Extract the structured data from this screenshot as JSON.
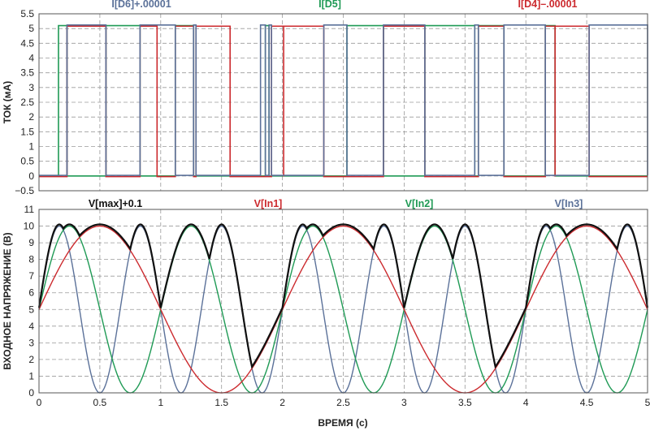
{
  "chart_data": [
    {
      "type": "line",
      "ylabel": "ТОК (мА)",
      "ylim": [
        -0.5,
        5.5
      ],
      "xlim": [
        0,
        5
      ],
      "y_ticks": [
        "5.5",
        "5",
        "4.5",
        "4",
        "3.5",
        "3",
        "2.5",
        "2",
        "1.5",
        "1",
        "0.5",
        "0",
        "−0.5"
      ],
      "grid": true,
      "legend_placement": "top",
      "series": [
        {
          "name": "I[D6]+.00001",
          "color": "#5b7199",
          "high_intervals": [
            [
              0.23,
              0.55
            ],
            [
              0.83,
              1.12
            ],
            [
              1.27,
              1.29
            ],
            [
              1.82,
              1.86
            ],
            [
              1.89,
              1.91
            ],
            [
              2.34,
              2.53
            ],
            [
              2.83,
              3.17
            ],
            [
              3.58,
              3.61
            ],
            [
              3.82,
              4.16
            ],
            [
              4.52,
              5.0
            ]
          ]
        },
        {
          "name": "I[D5]",
          "color": "#1f9a55",
          "high_intervals": [
            [
              0.16,
              0.23
            ],
            [
              0.55,
              0.83
            ],
            [
              1.12,
              1.27
            ],
            [
              1.86,
              1.89
            ],
            [
              2.53,
              2.83
            ],
            [
              3.17,
              3.58
            ],
            [
              3.61,
              3.82
            ],
            [
              4.16,
              4.24
            ],
            [
              5.0,
              5.0
            ]
          ]
        },
        {
          "name": "I[D4]–.00001",
          "color": "#cc2a2e",
          "high_intervals": [
            [
              0.23,
              0.55
            ],
            [
              0.83,
              0.97
            ],
            [
              1.12,
              1.27
            ],
            [
              1.29,
              1.57
            ],
            [
              1.91,
              2.01
            ],
            [
              2.01,
              2.34
            ],
            [
              2.83,
              3.17
            ],
            [
              3.61,
              3.82
            ],
            [
              4.16,
              4.24
            ],
            [
              4.24,
              4.52
            ]
          ]
        }
      ]
    },
    {
      "type": "line",
      "xlabel": "ВРЕМЯ (с)",
      "ylabel": "ВХОДНОЕ НАПРЯЖЕНИЕ (В)",
      "ylim": [
        0,
        11
      ],
      "xlim": [
        0,
        5
      ],
      "x_ticks": [
        "0",
        "0.5",
        "1",
        "1.5",
        "2",
        "2.5",
        "3",
        "3.5",
        "4",
        "4.5",
        "5"
      ],
      "y_ticks": [
        "11",
        "10",
        "9",
        "8",
        "7",
        "6",
        "5",
        "4",
        "3",
        "2",
        "1",
        "0"
      ],
      "grid": true,
      "legend_placement": "top",
      "signals": {
        "offset": 5,
        "amplitude": 5,
        "periods": [
          2.0,
          1.0,
          0.6667
        ]
      },
      "series": [
        {
          "name": "V[max]+0.1",
          "color": "#111111",
          "function": "max_plus_0.1"
        },
        {
          "name": "V[In1]",
          "color": "#cc2a2e",
          "period": 2.0
        },
        {
          "name": "V[In2]",
          "color": "#1f9a55",
          "period": 1.0
        },
        {
          "name": "V[In3]",
          "color": "#5b7199",
          "period": 0.6667
        }
      ]
    }
  ]
}
